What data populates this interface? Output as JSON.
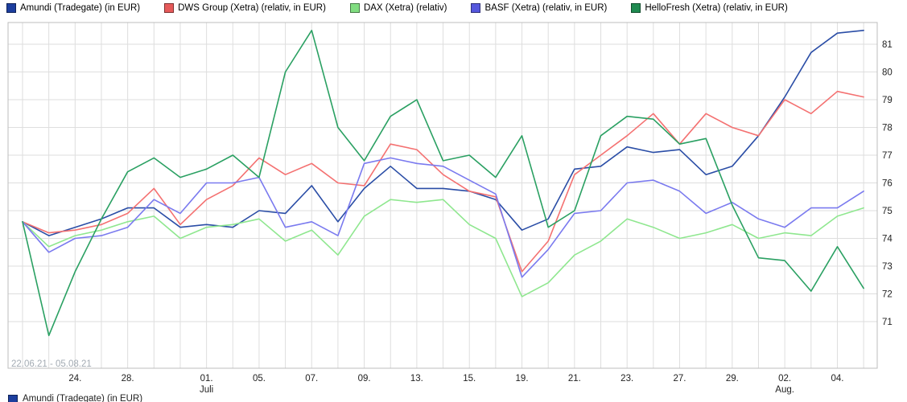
{
  "chart": {
    "date_range": "22.06.21 - 05.08.21",
    "colors": {
      "grid": "#dedede",
      "plot_border": "#bcbcbc",
      "axis_text": "#222222",
      "range_text": "#a3abb3"
    },
    "chart_data": {
      "type": "line",
      "x_axis": "trading days 22.06.2021 - 05.08.2021 (index 0-32)",
      "ylabel": "",
      "ylim": [
        69.4,
        81.8
      ],
      "y_ticks": [
        71,
        72,
        73,
        74,
        75,
        76,
        77,
        78,
        79,
        80,
        81
      ],
      "x_ticks": [
        {
          "i": 2,
          "label": "24."
        },
        {
          "i": 4,
          "label": "28."
        },
        {
          "i": 7,
          "label": "01.",
          "sub": "Juli"
        },
        {
          "i": 9,
          "label": "05."
        },
        {
          "i": 11,
          "label": "07."
        },
        {
          "i": 13,
          "label": "09."
        },
        {
          "i": 15,
          "label": "13."
        },
        {
          "i": 17,
          "label": "15."
        },
        {
          "i": 19,
          "label": "19."
        },
        {
          "i": 21,
          "label": "21."
        },
        {
          "i": 23,
          "label": "23."
        },
        {
          "i": 25,
          "label": "27."
        },
        {
          "i": 27,
          "label": "29."
        },
        {
          "i": 29,
          "label": "02.",
          "sub": "Aug."
        },
        {
          "i": 31,
          "label": "04."
        }
      ],
      "series": [
        {
          "name": "Amundi (Tradegate) (in EUR)",
          "color": "#2a4da6",
          "swatch": "#1c3e9e",
          "values": [
            74.6,
            74.1,
            74.4,
            74.7,
            75.1,
            75.1,
            74.4,
            74.5,
            74.4,
            75.0,
            74.9,
            75.9,
            74.6,
            75.8,
            76.6,
            75.8,
            75.8,
            75.7,
            75.4,
            74.3,
            74.7,
            76.5,
            76.6,
            77.3,
            77.1,
            77.2,
            76.3,
            76.6,
            77.7,
            79.1,
            80.7,
            81.4,
            81.5
          ]
        },
        {
          "name": "DWS Group (Xetra) (relativ, in EUR)",
          "color": "#f47171",
          "swatch": "#e65a5a",
          "values": [
            74.6,
            74.2,
            74.3,
            74.5,
            74.9,
            75.8,
            74.5,
            75.4,
            75.9,
            76.9,
            76.3,
            76.7,
            76.0,
            75.9,
            77.4,
            77.2,
            76.3,
            75.7,
            75.5,
            72.8,
            73.9,
            76.3,
            77.0,
            77.7,
            78.5,
            77.4,
            78.5,
            78.0,
            77.7,
            79.0,
            78.5,
            79.3,
            79.1
          ]
        },
        {
          "name": "DAX (Xetra) (relativ)",
          "color": "#8fe78f",
          "swatch": "#80dd80",
          "values": [
            74.6,
            73.7,
            74.1,
            74.3,
            74.6,
            74.8,
            74.0,
            74.4,
            74.5,
            74.7,
            73.9,
            74.3,
            73.4,
            74.8,
            75.4,
            75.3,
            75.4,
            74.5,
            74.0,
            71.9,
            72.4,
            73.4,
            73.9,
            74.7,
            74.4,
            74.0,
            74.2,
            74.5,
            74.0,
            74.2,
            74.1,
            74.8,
            75.1
          ]
        },
        {
          "name": "BASF (Xetra) (relativ, in EUR)",
          "color": "#7a7aef",
          "swatch": "#5557dd",
          "values": [
            74.6,
            73.5,
            74.0,
            74.1,
            74.4,
            75.4,
            74.9,
            76.0,
            76.0,
            76.2,
            74.4,
            74.6,
            74.1,
            76.7,
            76.9,
            76.7,
            76.6,
            76.1,
            75.6,
            72.6,
            73.6,
            74.9,
            75.0,
            76.0,
            76.1,
            75.7,
            74.9,
            75.3,
            74.7,
            74.4,
            75.1,
            75.1,
            75.7
          ]
        },
        {
          "name": "HelloFresh (Xetra) (relativ, in EUR)",
          "color": "#2aa062",
          "swatch": "#1f8a50",
          "values": [
            74.6,
            70.5,
            72.8,
            74.7,
            76.4,
            76.9,
            76.2,
            76.5,
            77.0,
            76.2,
            80.0,
            81.5,
            78.0,
            76.8,
            78.4,
            79.0,
            76.8,
            77.0,
            76.2,
            77.7,
            74.4,
            75.0,
            77.7,
            78.4,
            78.3,
            77.4,
            77.6,
            75.2,
            73.3,
            73.2,
            72.1,
            73.7,
            72.2
          ]
        }
      ]
    }
  }
}
